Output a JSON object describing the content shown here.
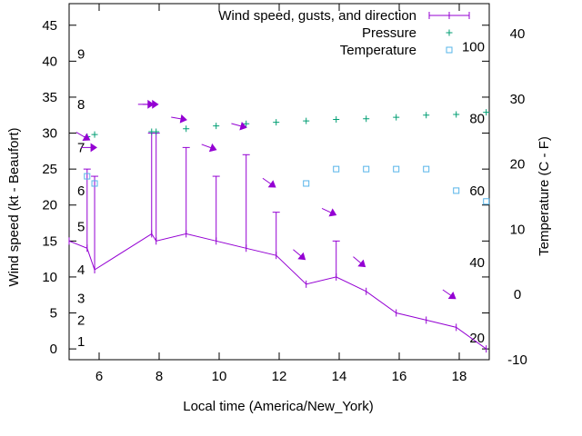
{
  "chart_data": {
    "type": "line",
    "xlabel": "Local time (America/New_York)",
    "ylabel_left": "Wind speed (kt - Beaufort)",
    "ylabel_right": "Temperature (C - F)",
    "grid": false,
    "legend_position": "top-right",
    "x_axis": {
      "min": 5.0,
      "max": 19.0,
      "ticks": [
        6,
        8,
        10,
        12,
        14,
        16,
        18
      ]
    },
    "y_left": {
      "min": -1.5,
      "max": 48,
      "ticks": [
        0,
        5,
        10,
        15,
        20,
        25,
        30,
        35,
        40,
        45
      ]
    },
    "y_right": {
      "min": -10,
      "max": 44.6,
      "ticks": [
        -10,
        0,
        10,
        20,
        30,
        40
      ]
    },
    "beaufort_labels": [
      {
        "label": "1",
        "y": 1
      },
      {
        "label": "2",
        "y": 4
      },
      {
        "label": "3",
        "y": 7
      },
      {
        "label": "4",
        "y": 11
      },
      {
        "label": "5",
        "y": 17
      },
      {
        "label": "6",
        "y": 22
      },
      {
        "label": "7",
        "y": 28
      },
      {
        "label": "8",
        "y": 34
      },
      {
        "label": "9",
        "y": 41
      }
    ],
    "fahrenheit_labels": [
      {
        "label": "20",
        "y": 1.5
      },
      {
        "label": "40",
        "y": 12
      },
      {
        "label": "60",
        "y": 22
      },
      {
        "label": "80",
        "y": 32
      },
      {
        "label": "100",
        "y": 42
      }
    ],
    "series": [
      {
        "name": "Wind speed, gusts, and direction",
        "kind": "line-errorbar",
        "color": "#9400d3",
        "x": [
          5.0,
          5.6,
          5.85,
          7.75,
          7.9,
          8.9,
          9.9,
          10.9,
          11.9,
          12.9,
          13.9,
          14.9,
          15.9,
          16.9,
          17.9,
          18.9
        ],
        "y": [
          15,
          14,
          11,
          16,
          15,
          16,
          15,
          14,
          13,
          9,
          10,
          8,
          5,
          4,
          3,
          0
        ],
        "gust_high": [
          null,
          25,
          24,
          30,
          30,
          28,
          24,
          27,
          19,
          null,
          15,
          null,
          null,
          null,
          null,
          null
        ]
      },
      {
        "name": "Pressure",
        "kind": "points-plus",
        "color": "#009e73",
        "y_axis": "left",
        "x": [
          5.6,
          5.85,
          7.75,
          7.9,
          8.9,
          9.9,
          10.9,
          11.9,
          12.9,
          13.9,
          14.9,
          15.9,
          16.9,
          17.9,
          18.9
        ],
        "y": [
          29.5,
          29.8,
          30.2,
          30.2,
          30.6,
          31.0,
          31.3,
          31.5,
          31.7,
          31.9,
          32.0,
          32.2,
          32.5,
          32.6,
          32.9
        ]
      },
      {
        "name": "Temperature",
        "kind": "points-square",
        "color": "#56b4e9",
        "y_axis": "left",
        "x": [
          5.6,
          5.85,
          12.9,
          13.9,
          14.9,
          15.9,
          16.9,
          17.9,
          18.9
        ],
        "y": [
          24,
          23,
          23,
          25,
          25,
          25,
          25,
          22,
          20.5
        ]
      },
      {
        "name": "Wind direction arrows",
        "kind": "arrows",
        "color": "#9400d3",
        "points": [
          {
            "x": 5.5,
            "y": 29.5,
            "angle": 30
          },
          {
            "x": 5.7,
            "y": 28.0,
            "angle": 0
          },
          {
            "x": 7.6,
            "y": 34.0,
            "angle": 0
          },
          {
            "x": 7.75,
            "y": 34.0,
            "angle": 0
          },
          {
            "x": 8.7,
            "y": 32.0,
            "angle": 10
          },
          {
            "x": 9.7,
            "y": 28.0,
            "angle": 20
          },
          {
            "x": 10.7,
            "y": 31.0,
            "angle": 15
          },
          {
            "x": 11.7,
            "y": 23.0,
            "angle": 35
          },
          {
            "x": 12.7,
            "y": 13.0,
            "angle": 40
          },
          {
            "x": 13.7,
            "y": 19.0,
            "angle": 25
          },
          {
            "x": 14.7,
            "y": 12.0,
            "angle": 40
          },
          {
            "x": 17.7,
            "y": 7.5,
            "angle": 35
          }
        ]
      }
    ]
  }
}
